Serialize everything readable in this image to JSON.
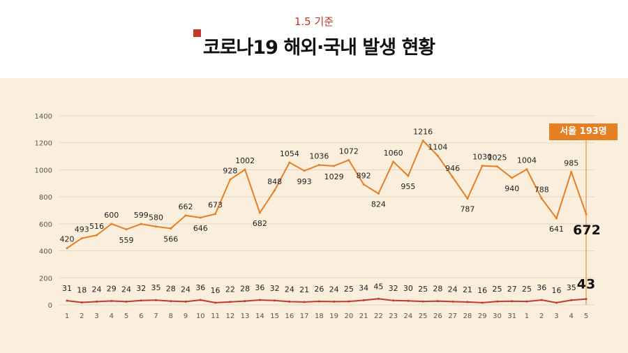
{
  "header": {
    "subtitle": "1.5 기준",
    "title": "코로나19 해외·국내 발생 현황"
  },
  "callout": {
    "label": "서울 193명"
  },
  "colors": {
    "background": "#faeedd",
    "overseas_line": "#e67e22",
    "domestic_line": "#c0392b",
    "callout": "#e67e22"
  },
  "chart_data": {
    "type": "line",
    "title": "코로나19 해외·국내 발생 현황",
    "categories": [
      "1",
      "2",
      "3",
      "4",
      "5",
      "6",
      "7",
      "8",
      "9",
      "10",
      "11",
      "12",
      "13",
      "14",
      "15",
      "16",
      "17",
      "18",
      "19",
      "20",
      "21",
      "22",
      "23",
      "24",
      "25",
      "26",
      "27",
      "28",
      "29",
      "30",
      "31",
      "1",
      "2",
      "3",
      "4",
      "5"
    ],
    "ylim": [
      0,
      1400
    ],
    "yticks": [
      0,
      200,
      400,
      600,
      800,
      1000,
      1200,
      1400
    ],
    "grid": true,
    "series": [
      {
        "values": [
          420,
          493,
          516,
          600,
          559,
          599,
          580,
          566,
          662,
          646,
          673,
          928,
          1002,
          682,
          848,
          1054,
          993,
          1036,
          1029,
          1072,
          892,
          824,
          1060,
          955,
          1216,
          1104,
          946,
          787,
          1030,
          1025,
          940,
          1004,
          788,
          641,
          985,
          672
        ]
      },
      {
        "values": [
          31,
          18,
          24,
          29,
          24,
          32,
          35,
          28,
          24,
          36,
          16,
          22,
          28,
          36,
          32,
          24,
          21,
          26,
          24,
          25,
          34,
          45,
          32,
          30,
          25,
          28,
          24,
          21,
          16,
          25,
          27,
          25,
          36,
          16,
          35,
          43
        ]
      }
    ]
  }
}
